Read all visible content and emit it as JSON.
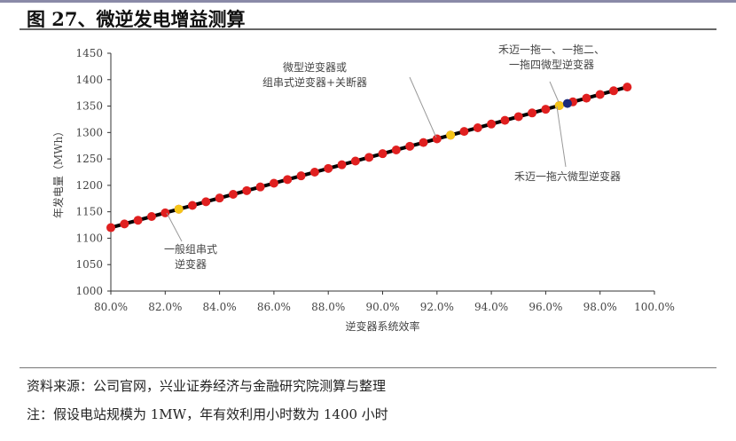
{
  "header": {
    "title": "图 27、微逆发电增益测算"
  },
  "chart_data": {
    "type": "line",
    "title": "",
    "xlabel": "逆变器系统效率",
    "ylabel": "年发电量（MWh）",
    "xlim": [
      80,
      100
    ],
    "ylim": [
      1000,
      1450
    ],
    "x_ticks": [
      "80.0%",
      "82.0%",
      "84.0%",
      "86.0%",
      "88.0%",
      "90.0%",
      "92.0%",
      "94.0%",
      "96.0%",
      "98.0%",
      "100.0%"
    ],
    "y_ticks": [
      "1000",
      "1050",
      "1100",
      "1150",
      "1200",
      "1250",
      "1300",
      "1350",
      "1400",
      "1450"
    ],
    "grid": false,
    "series": [
      {
        "x_start": 80,
        "x_end": 99,
        "x_step": 0.5,
        "formula_note": "",
        "line_color": "#000000",
        "marker_color": "#e02020"
      }
    ],
    "highlights": [
      {
        "x": 82.5,
        "y": 1155,
        "color": "#f5c518"
      },
      {
        "x": 92.5,
        "y": 1295,
        "color": "#f5c518"
      },
      {
        "x": 96.5,
        "y": 1351,
        "color": "#f5c518"
      },
      {
        "x": 96.8,
        "y": 1355,
        "color": "#1a2a7a"
      }
    ],
    "annotations": [
      {
        "lines": [
          "一般组串式",
          "逆变器"
        ],
        "x": 82,
        "y": 1148
      },
      {
        "lines": [
          "微型逆变器或",
          "组串式逆变器+关断器"
        ],
        "x": 92,
        "y": 1288
      },
      {
        "lines": [
          "禾迈一拖一、一拖二、",
          "一拖四微型逆变器"
        ],
        "x": 96.8,
        "y": 1355
      },
      {
        "lines": [
          "禾迈一拖六微型逆变器"
        ],
        "x": 96.5,
        "y": 1351
      }
    ]
  },
  "footer": {
    "source": "资料来源：公司官网，兴业证券经济与金融研究院测算与整理",
    "note": "注：假设电站规模为 1MW，年有效利用小时数为 1400 小时"
  }
}
